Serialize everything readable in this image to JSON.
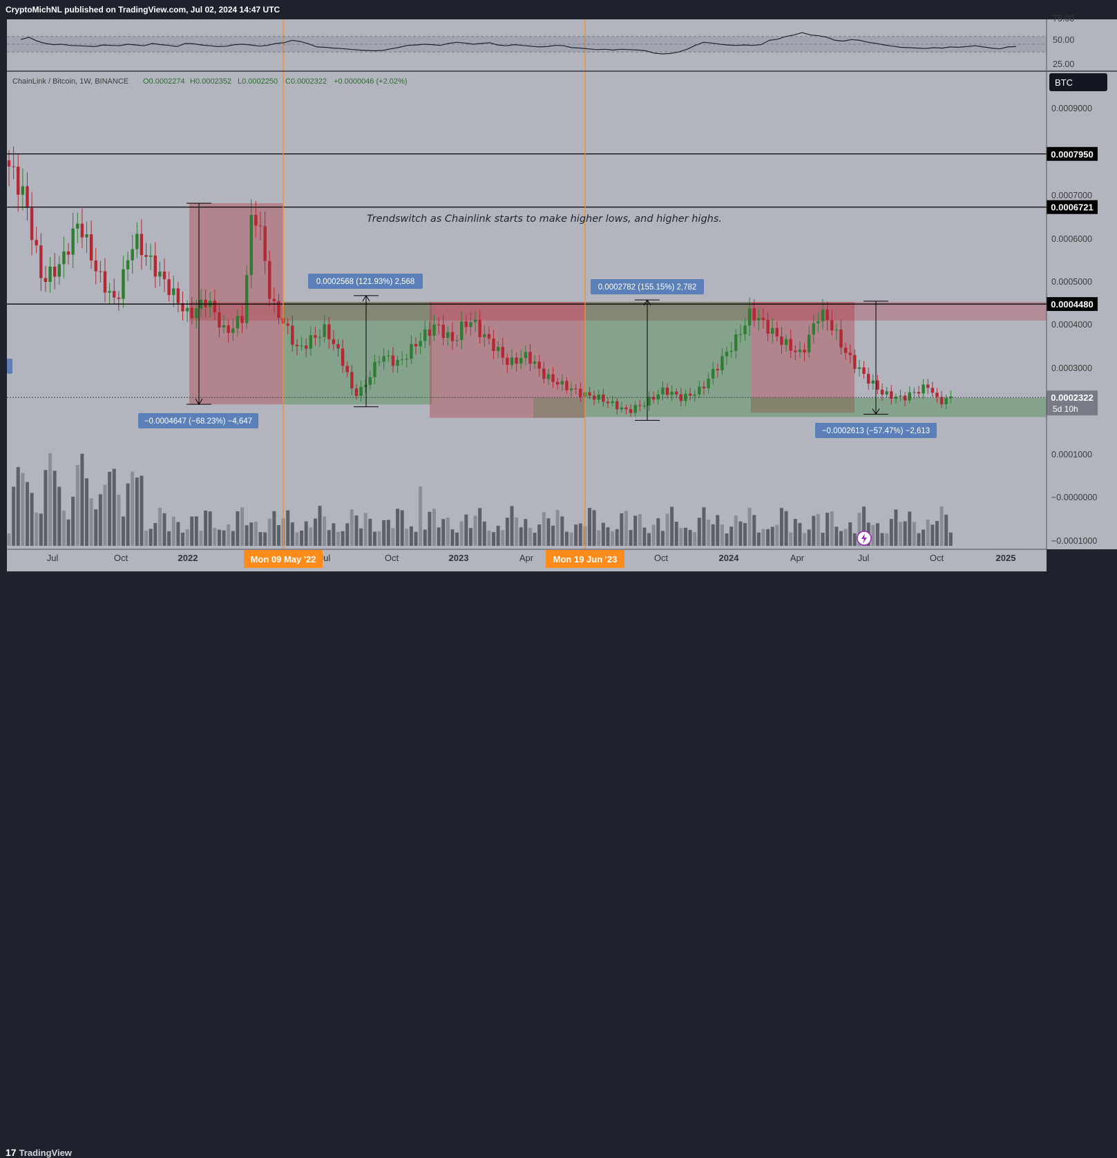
{
  "header": {
    "published_text": "CryptoMichNL published on TradingView.com, Jul 02, 2024 14:47 UTC"
  },
  "footer": {
    "brand": "TradingView"
  },
  "legend": {
    "symbol": "ChainLink / Bitcoin, 1W, BINANCE",
    "open": "O0.0002274",
    "high": "H0.0002352",
    "low": "L0.0002250",
    "close": "C0.0002322",
    "change": "+0.0000046 (+2.02%)"
  },
  "currency_button": "BTC",
  "annotation_text": "Trendswitch as Chainlink starts to make higher lows, and higher highs.",
  "colors": {
    "background": "#b2b5be",
    "up": "#2f7d32",
    "down": "#b22833",
    "price_line": "#000000",
    "vertical_marker": "#ff8c1a",
    "label_blue": "#5b7fb8",
    "down_zone": "rgba(178,40,51,0.35)",
    "up_zone": "rgba(47,125,50,0.35)"
  },
  "chart_data": {
    "type": "candlestick",
    "symbol": "ChainLink / Bitcoin",
    "timeframe": "1W",
    "exchange": "BINANCE",
    "price_axis_labels": [
      "0.0009000",
      "0.0007000",
      "0.0006000",
      "0.0005000",
      "0.0004000",
      "0.0003000",
      "0.0001000",
      "−0.0000000",
      "−0.0001000"
    ],
    "horizontal_levels": [
      {
        "value": 0.000795,
        "label": "0.0007950"
      },
      {
        "value": 0.0006721,
        "label": "0.0006721"
      },
      {
        "value": 0.000448,
        "label": "0.0004480"
      }
    ],
    "current_price": {
      "value": 0.0002322,
      "label": "0.0002322",
      "countdown": "5d 10h"
    },
    "x_axis_labels": [
      "Jul",
      "Oct",
      "2022",
      "Jul",
      "Oct",
      "2023",
      "Apr",
      "Oct",
      "2024",
      "Apr",
      "Jul",
      "Oct",
      "2025"
    ],
    "vertical_markers": [
      {
        "date": "2022-05-09",
        "label": "Mon 09 May '22"
      },
      {
        "date": "2023-06-19",
        "label": "Mon 19 Jun '23"
      }
    ],
    "measurements": [
      {
        "label": "−0.0004647 (−68.23%) −4,647",
        "from": 0.000681,
        "to": 0.0002163
      },
      {
        "label": "0.0002568 (121.93%) 2,568",
        "from": 0.0002106,
        "to": 0.0004674
      },
      {
        "label": "0.0002782 (155.15%) 2,782",
        "from": 0.0001793,
        "to": 0.0004575
      },
      {
        "label": "−0.0002613 (−57.47%) −2,613",
        "from": 0.0004547,
        "to": 0.0001934
      }
    ],
    "rsi": {
      "axis_labels": [
        "75.00",
        "50.00",
        "25.00"
      ],
      "values": [
        62,
        68,
        58,
        52,
        49,
        50,
        47,
        46,
        45,
        44,
        48,
        47,
        46,
        50,
        48,
        46,
        52,
        49,
        47,
        44,
        52,
        51,
        48,
        46,
        44,
        45,
        49,
        50,
        48,
        45,
        47,
        52,
        54,
        60,
        57,
        51,
        43,
        42,
        40,
        39,
        37,
        35,
        34,
        33,
        34,
        38,
        42,
        47,
        48,
        50,
        49,
        47,
        52,
        55,
        53,
        50,
        52,
        54,
        48,
        46,
        49,
        47,
        45,
        43,
        44,
        47,
        46,
        41,
        40,
        38,
        36,
        37,
        35,
        37,
        36,
        35,
        33,
        27,
        25,
        26,
        30,
        37,
        47,
        55,
        53,
        50,
        48,
        47,
        48,
        47,
        49,
        60,
        63,
        70,
        74,
        80,
        74,
        72,
        68,
        60,
        58,
        62,
        60,
        55,
        52,
        48,
        45,
        42,
        41,
        40,
        39,
        41,
        40,
        43,
        42,
        44,
        46,
        43,
        40,
        38,
        43,
        44
      ]
    }
  }
}
